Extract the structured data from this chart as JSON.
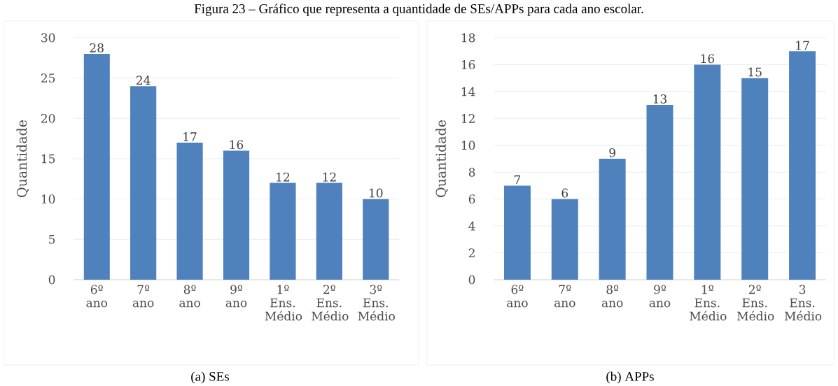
{
  "chart_data": [
    {
      "type": "bar",
      "categories": [
        "6º ano",
        "7º ano",
        "8º ano",
        "9º ano",
        "1º Ens. Médio",
        "2º Ens. Médio",
        "3º Ens. Médio"
      ],
      "values": [
        28,
        24,
        17,
        16,
        12,
        12,
        10
      ],
      "color": "#4f81bd",
      "ylabel": "Quantidade",
      "ylim": [
        0,
        30
      ],
      "yticks": [
        0,
        5,
        10,
        15,
        20,
        25,
        30
      ],
      "grid": "y",
      "data_labels": true,
      "annotations": [
        "Figura 23 – Gráfico que representa a quantidade de SEs/APPs para cada ano escolar.",
        "(a) SEs"
      ]
    },
    {
      "type": "bar",
      "categories": [
        "6º ano",
        "7º ano",
        "8º ano",
        "9º ano",
        "1º Ens. Médio",
        "2º Ens. Médio",
        "3 Ens. Médio"
      ],
      "values": [
        7,
        6,
        9,
        13,
        16,
        15,
        17
      ],
      "color": "#4f81bd",
      "ylabel": "Quantidade",
      "ylim": [
        0,
        18
      ],
      "yticks": [
        0,
        2,
        4,
        6,
        8,
        10,
        12,
        14,
        16,
        18
      ],
      "grid": "y",
      "data_labels": true,
      "annotations": [
        "(b) APPs"
      ]
    }
  ]
}
